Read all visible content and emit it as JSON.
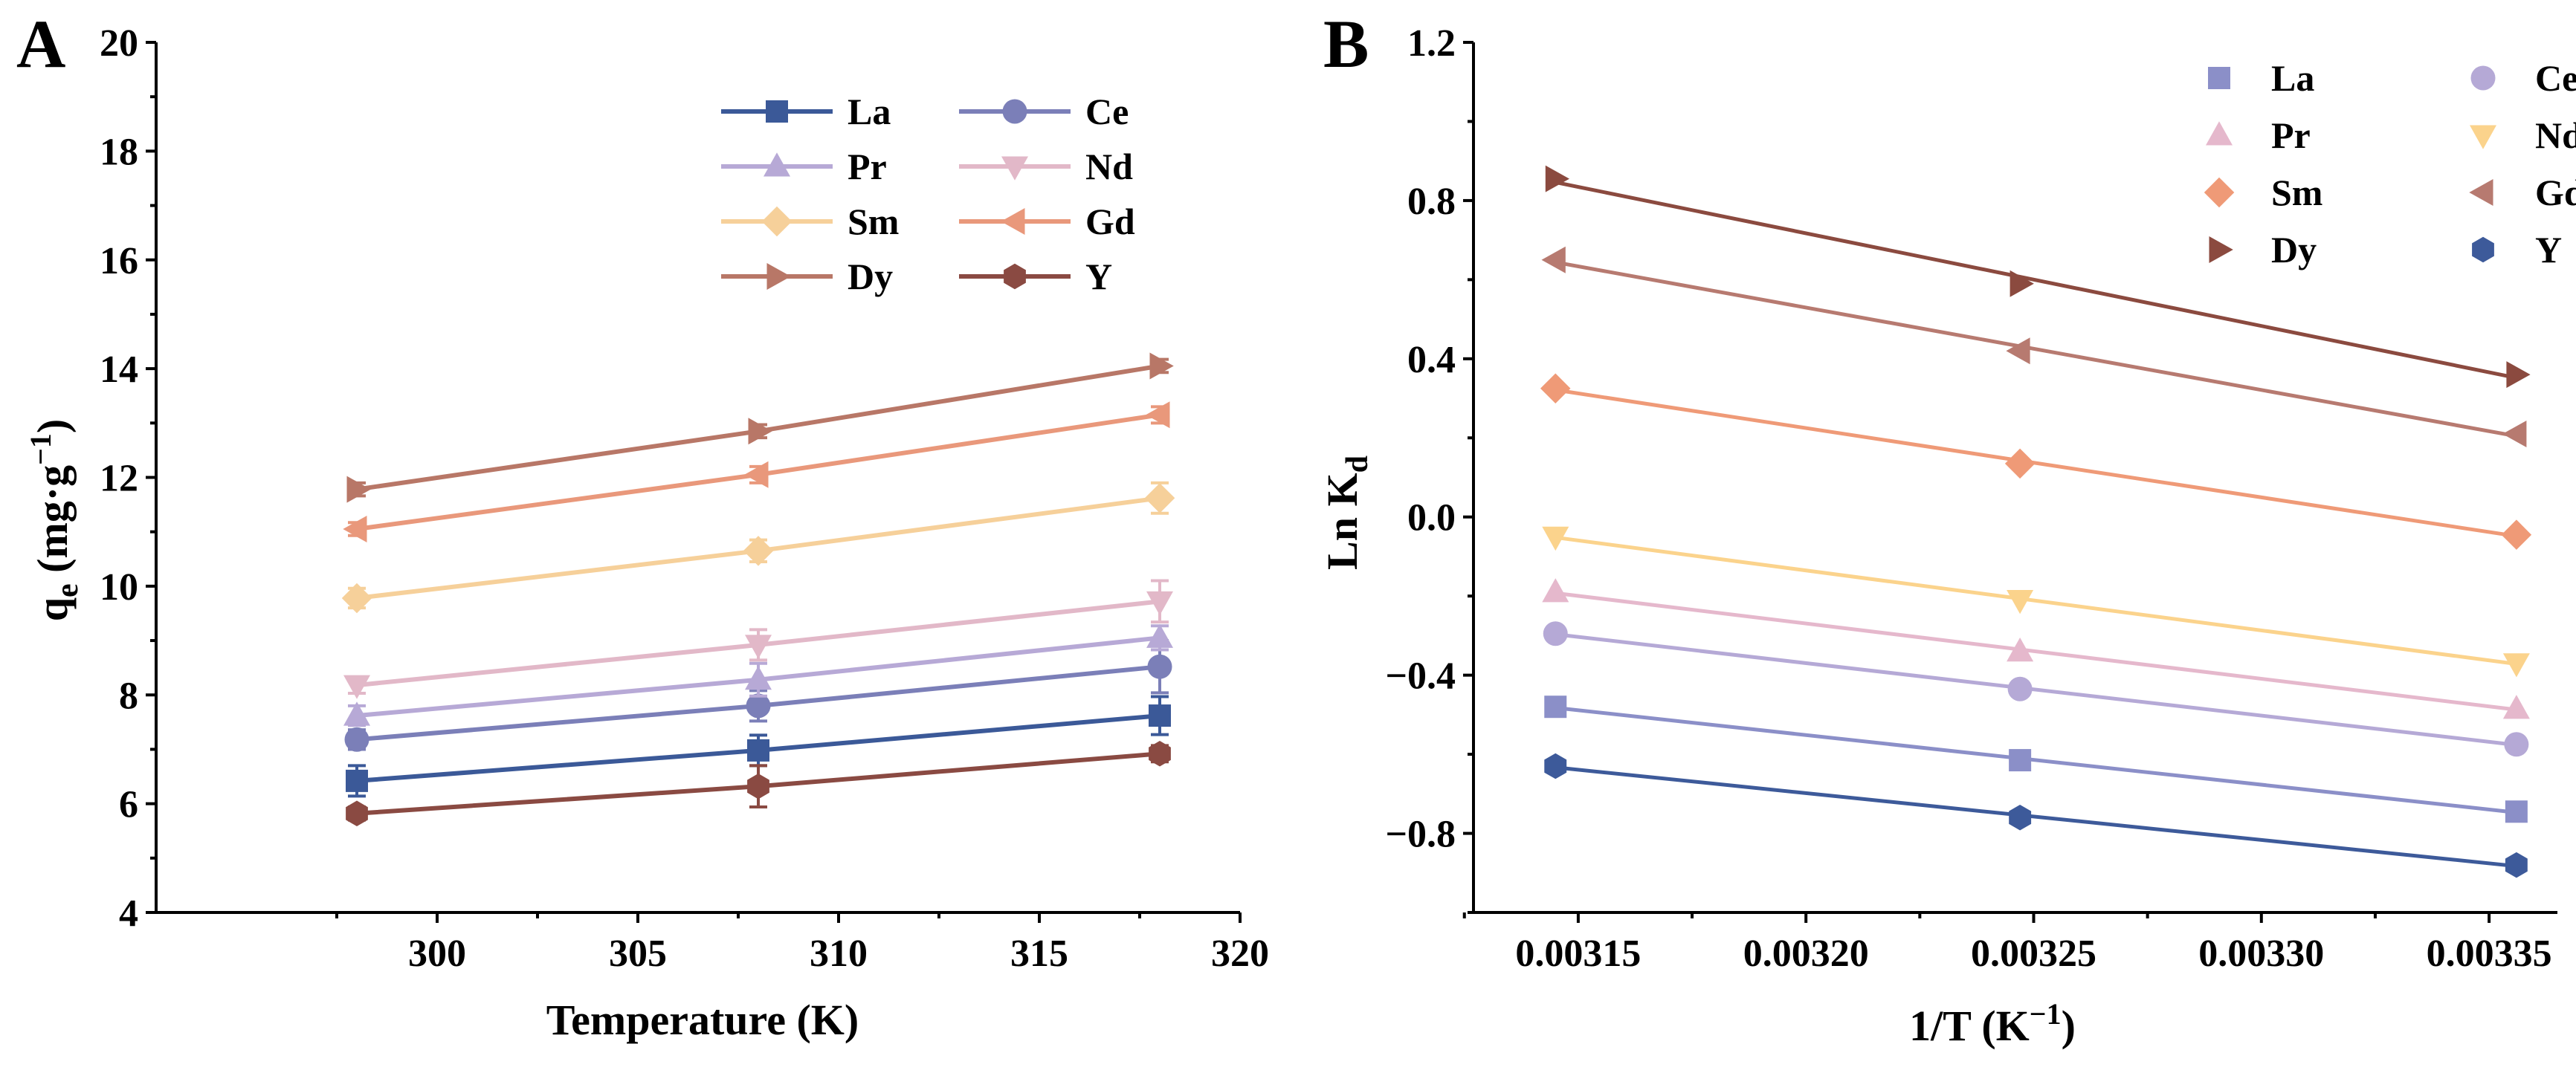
{
  "chart_data": [
    {
      "panel_label": "A",
      "type": "line",
      "xlabel": "Temperature (K)",
      "ylabel": {
        "main": "q",
        "sub": "e",
        "unit_start": " (mg·g",
        "unit_sup": "−1",
        "unit_end": ")"
      },
      "x": [
        298,
        308,
        318
      ],
      "xlim": [
        293,
        320
      ],
      "ylim": [
        4,
        20
      ],
      "xticks": [
        300,
        305,
        310,
        315,
        320
      ],
      "xtick_labels": [
        "300",
        "305",
        "310",
        "315",
        "320"
      ],
      "yticks": [
        4,
        6,
        8,
        10,
        12,
        14,
        16,
        18,
        20
      ],
      "ytick_labels": [
        "4",
        "6",
        "8",
        "10",
        "12",
        "14",
        "16",
        "18",
        "20"
      ],
      "legend_position": "top-right",
      "series": [
        {
          "name": "La",
          "color": "#3b5998",
          "marker": "square",
          "values": [
            6.42,
            6.98,
            7.62
          ],
          "errors": [
            0.28,
            0.28,
            0.35
          ]
        },
        {
          "name": "Ce",
          "color": "#7b7fb8",
          "marker": "circle",
          "values": [
            7.18,
            7.8,
            8.52
          ],
          "errors": [
            0.18,
            0.28,
            0.48
          ]
        },
        {
          "name": "Pr",
          "color": "#b7a9d6",
          "marker": "triangle-up",
          "values": [
            7.62,
            8.28,
            9.05
          ],
          "errors": [
            0.18,
            0.3,
            0.22
          ]
        },
        {
          "name": "Nd",
          "color": "#e2b8c8",
          "marker": "triangle-down",
          "values": [
            8.18,
            8.92,
            9.72
          ],
          "errors": [
            0.15,
            0.28,
            0.38
          ]
        },
        {
          "name": "Sm",
          "color": "#f6d09a",
          "marker": "diamond",
          "values": [
            9.78,
            10.65,
            11.62
          ],
          "errors": [
            0.18,
            0.2,
            0.28
          ]
        },
        {
          "name": "Gd",
          "color": "#e9987b",
          "marker": "triangle-left",
          "values": [
            11.05,
            12.05,
            13.15
          ],
          "errors": [
            0.12,
            0.15,
            0.15
          ]
        },
        {
          "name": "Dy",
          "color": "#b87767",
          "marker": "triangle-right",
          "values": [
            11.78,
            12.85,
            14.05
          ],
          "errors": [
            0.12,
            0.12,
            0.12
          ]
        },
        {
          "name": "Y",
          "color": "#8a4a42",
          "marker": "hexagon",
          "values": [
            5.82,
            6.32,
            6.92
          ],
          "errors": [
            0.12,
            0.38,
            0.15
          ]
        }
      ]
    },
    {
      "panel_label": "B",
      "type": "scatter",
      "xlabel": {
        "main": "1/T (K",
        "sup": "−1",
        "end": ")"
      },
      "ylabel": {
        "main": "Ln K",
        "sub": "d"
      },
      "x": [
        0.003145,
        0.003247,
        0.003356
      ],
      "xlim": [
        0.003127,
        0.003365
      ],
      "ylim": [
        -1.0,
        1.2
      ],
      "xticks": [
        0.00315,
        0.0032,
        0.00325,
        0.0033,
        0.00335
      ],
      "xtick_labels": [
        "0.00315",
        "0.00320",
        "0.00325",
        "0.00330",
        "0.00335"
      ],
      "yticks": [
        -0.8,
        -0.4,
        0.0,
        0.4,
        0.8,
        1.2
      ],
      "ytick_labels": [
        "−0.8",
        "−0.4",
        "0.0",
        "0.4",
        "0.8",
        "1.2"
      ],
      "legend_position": "top-right",
      "series": [
        {
          "name": "La",
          "color": "#8b8fc8",
          "marker": "square",
          "values": [
            -0.48,
            -0.615,
            -0.745
          ]
        },
        {
          "name": "Ce",
          "color": "#b5a9d6",
          "marker": "circle",
          "values": [
            -0.295,
            -0.435,
            -0.575
          ]
        },
        {
          "name": "Pr",
          "color": "#e5b8cc",
          "marker": "triangle-up",
          "values": [
            -0.19,
            -0.34,
            -0.485
          ]
        },
        {
          "name": "Nd",
          "color": "#fbd38c",
          "marker": "triangle-down",
          "values": [
            -0.05,
            -0.21,
            -0.37
          ]
        },
        {
          "name": "Sm",
          "color": "#ef9a77",
          "marker": "diamond",
          "values": [
            0.325,
            0.135,
            -0.045
          ]
        },
        {
          "name": "Gd",
          "color": "#b77a70",
          "marker": "triangle-left",
          "values": [
            0.65,
            0.42,
            0.21
          ]
        },
        {
          "name": "Dy",
          "color": "#8b4a3f",
          "marker": "triangle-right",
          "values": [
            0.855,
            0.59,
            0.36
          ]
        },
        {
          "name": "Y",
          "color": "#3d5a9a",
          "marker": "hexagon",
          "values": [
            -0.63,
            -0.76,
            -0.88
          ]
        }
      ]
    }
  ]
}
